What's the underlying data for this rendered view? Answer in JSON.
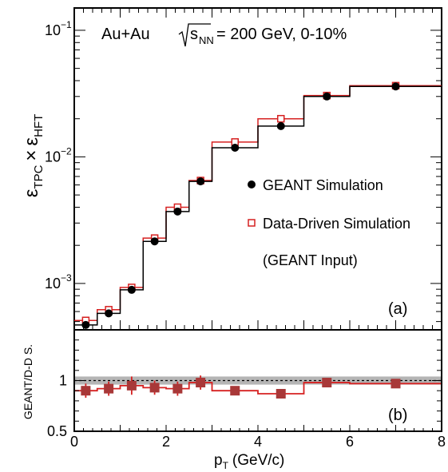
{
  "chart_data": [
    {
      "panel": "(a)",
      "type": "line",
      "yscale": "log",
      "ylim": [
        0.00043,
        0.15
      ],
      "xlim": [
        0,
        8
      ],
      "annotation": {
        "system": "Au+Au",
        "sqrt": "s",
        "sqrt_sub": "NN",
        "energy_text": "= 200 GeV, 0-10%"
      },
      "ylabel": {
        "a": "ε",
        "a_sub": "TPC",
        "times": "×",
        "b": "ε",
        "b_sub": "HFT"
      },
      "yticks": [
        {
          "value": 0.001,
          "base": "10",
          "exp": "−3"
        },
        {
          "value": 0.01,
          "base": "10",
          "exp": "−2"
        },
        {
          "value": 0.1,
          "base": "10",
          "exp": "−1"
        }
      ],
      "bin_edges": [
        0,
        0.5,
        1,
        1.5,
        2,
        2.5,
        3,
        4,
        5,
        6,
        8
      ],
      "series": [
        {
          "name": "GEANT Simulation",
          "marker": "filled-circle",
          "color": "#000000",
          "values": [
            0.00047,
            0.00058,
            0.00089,
            0.00215,
            0.0037,
            0.0064,
            0.0118,
            0.0175,
            0.03,
            0.036
          ]
        },
        {
          "name": "Data-Driven Simulation",
          "marker": "open-square",
          "color": "#d62020",
          "values": [
            0.00051,
            0.00062,
            0.00093,
            0.00228,
            0.004,
            0.0065,
            0.0131,
            0.02,
            0.0305,
            0.0365
          ]
        }
      ],
      "legend_note": "(GEANT Input)"
    },
    {
      "panel": "(b)",
      "type": "line",
      "ylabel": "GEANT/D-D S.",
      "ylim": [
        0.5,
        1.5
      ],
      "yticks": [
        {
          "value": 0.5,
          "label": "0.5"
        },
        {
          "value": 1,
          "label": "1"
        }
      ],
      "xlim": [
        0,
        8
      ],
      "xlabel": {
        "p": "p",
        "p_sub": "T",
        "unit": "(GeV/c)"
      },
      "xticks": [
        {
          "value": 0,
          "label": "0"
        },
        {
          "value": 2,
          "label": "2"
        },
        {
          "value": 4,
          "label": "4"
        },
        {
          "value": 6,
          "label": "6"
        },
        {
          "value": 8,
          "label": "8"
        }
      ],
      "reference_line": 1,
      "band": [
        0.96,
        1.04
      ],
      "band_color": "#b5b5b5",
      "bin_edges": [
        0,
        0.5,
        1,
        1.5,
        2,
        2.5,
        3,
        4,
        5,
        6,
        8
      ],
      "series": [
        {
          "name": "ratio",
          "color": "#d62020",
          "marker_color": "#a83838",
          "values": [
            0.9,
            0.92,
            0.95,
            0.93,
            0.92,
            0.98,
            0.9,
            0.87,
            0.98,
            0.97
          ],
          "errors": [
            0.07,
            0.07,
            0.09,
            0.07,
            0.07,
            0.07,
            0.0,
            0.0,
            0.0,
            0.0
          ]
        }
      ]
    }
  ]
}
